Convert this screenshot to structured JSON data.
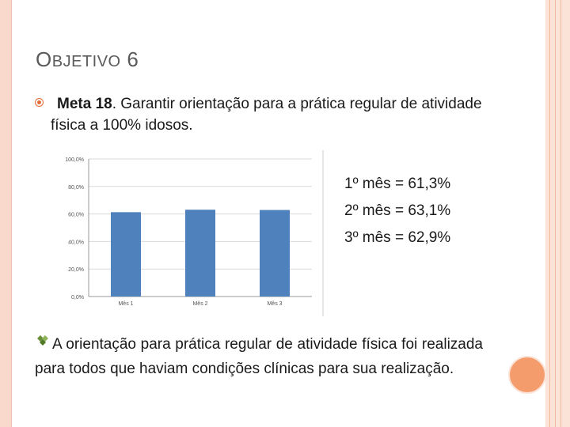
{
  "slide": {
    "title_first_letter": "O",
    "title_rest": "BJETIVO",
    "title_number": "6",
    "meta_label": "Meta 18",
    "meta_text": ". Garantir orientação para a prática regular de atividade física a 100% idosos.",
    "stats": [
      "1º mês = 61,3%",
      "2º mês = 63,1%",
      "3º mês = 62,9%"
    ],
    "conclusion": "A orientação para prática regular de atividade física foi realizada para todos que haviam condições clínicas para sua realização.",
    "bullet_icon": "circle-bullet-icon",
    "conclusion_icon": "diamond-bullet-icon",
    "colors": {
      "accent": "#e36c3a",
      "bar": "#4f81bd",
      "border": "#f8d9cc",
      "circle": "#f59c6c"
    }
  },
  "chart_data": {
    "type": "bar",
    "categories": [
      "Mês 1",
      "Mês 2",
      "Mês 3"
    ],
    "values": [
      61.3,
      63.1,
      62.9
    ],
    "ylim": [
      0,
      100
    ],
    "yticks": [
      "0,0%",
      "20,0%",
      "40,0%",
      "60,0%",
      "80,0%",
      "100,0%"
    ],
    "grid": true,
    "legend": "none"
  }
}
